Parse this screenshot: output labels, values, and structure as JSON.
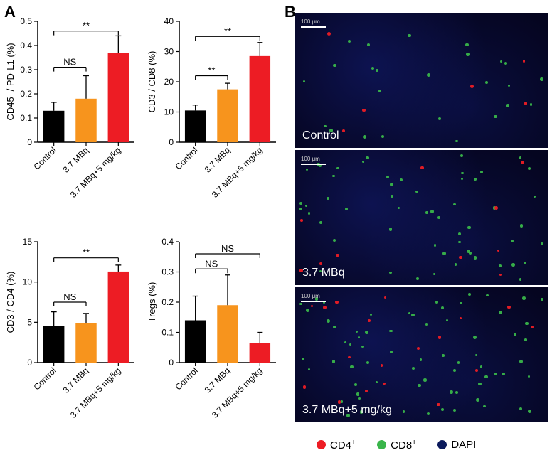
{
  "panel_labels": {
    "A": "A",
    "B": "B"
  },
  "colors": {
    "control": "#000000",
    "dose1": "#f7941d",
    "dose2": "#ed1c24",
    "axis": "#000000",
    "cd4": "#ed1c24",
    "cd8": "#39b54a",
    "dapi": "#0b1a5c",
    "micro_bg": "#050520",
    "white": "#ffffff"
  },
  "chart_common": {
    "categories": [
      "Control",
      "3.7 MBq",
      "3.7 MBq+5 mg/kg"
    ],
    "bar_colors": [
      "#000000",
      "#f7941d",
      "#ed1c24"
    ],
    "axis_fontsize": 13,
    "tick_fontsize": 12,
    "label_rot": -45,
    "bar_width": 0.65,
    "cap_width": 8
  },
  "charts": [
    {
      "ylabel": "CD45- / PD-L1 (%)",
      "ylim": [
        0,
        0.5
      ],
      "yticks": [
        0,
        0.1,
        0.2,
        0.3,
        0.4,
        0.5
      ],
      "ytick_labels": [
        "0",
        "0.1",
        "0.2",
        "0.3",
        "0.4",
        "0.5"
      ],
      "values": [
        0.13,
        0.18,
        0.37
      ],
      "errors": [
        0.035,
        0.095,
        0.07
      ],
      "sig": [
        {
          "from": 0,
          "to": 1,
          "label": "NS",
          "y": 0.31
        },
        {
          "from": 0,
          "to": 2,
          "label": "**",
          "y": 0.46
        }
      ]
    },
    {
      "ylabel": "CD3 / CD8 (%)",
      "ylim": [
        0,
        40
      ],
      "yticks": [
        0,
        10,
        20,
        30,
        40
      ],
      "ytick_labels": [
        "0",
        "10",
        "20",
        "30",
        "40"
      ],
      "values": [
        10.5,
        17.5,
        28.5
      ],
      "errors": [
        1.8,
        2.0,
        4.5
      ],
      "sig": [
        {
          "from": 0,
          "to": 1,
          "label": "**",
          "y": 22
        },
        {
          "from": 0,
          "to": 2,
          "label": "**",
          "y": 35
        }
      ]
    },
    {
      "ylabel": "CD3 / CD4 (%)",
      "ylim": [
        0,
        15
      ],
      "yticks": [
        0,
        5,
        10,
        15
      ],
      "ytick_labels": [
        "0",
        "5",
        "10",
        "15"
      ],
      "values": [
        4.5,
        4.9,
        11.3
      ],
      "errors": [
        1.8,
        1.2,
        0.8
      ],
      "sig": [
        {
          "from": 0,
          "to": 1,
          "label": "NS",
          "y": 7.5
        },
        {
          "from": 0,
          "to": 2,
          "label": "**",
          "y": 13
        }
      ]
    },
    {
      "ylabel": "Tregs (%)",
      "ylim": [
        0,
        0.4
      ],
      "yticks": [
        0,
        0.1,
        0.2,
        0.3,
        0.4
      ],
      "ytick_labels": [
        "0",
        "0.1",
        "0.2",
        "0.3",
        "0.4"
      ],
      "values": [
        0.14,
        0.19,
        0.065
      ],
      "errors": [
        0.08,
        0.1,
        0.035
      ],
      "sig": [
        {
          "from": 0,
          "to": 1,
          "label": "NS",
          "y": 0.31
        },
        {
          "from": 0,
          "to": 2,
          "label": "NS",
          "y": 0.36
        }
      ]
    }
  ],
  "micrographs": [
    {
      "caption": "Control",
      "density_cd4": 6,
      "density_cd8": 25,
      "scale": "100 μm"
    },
    {
      "caption": "3.7 MBq",
      "density_cd4": 10,
      "density_cd8": 55,
      "scale": "100 μm"
    },
    {
      "caption": "3.7 MBq+5 mg/kg",
      "density_cd4": 18,
      "density_cd8": 70,
      "scale": "100 μm"
    }
  ],
  "legend_b": [
    {
      "label": "CD4",
      "sup": "+",
      "color": "#ed1c24"
    },
    {
      "label": "CD8",
      "sup": "+",
      "color": "#39b54a"
    },
    {
      "label": "DAPI",
      "sup": "",
      "color": "#0b1a5c"
    }
  ]
}
